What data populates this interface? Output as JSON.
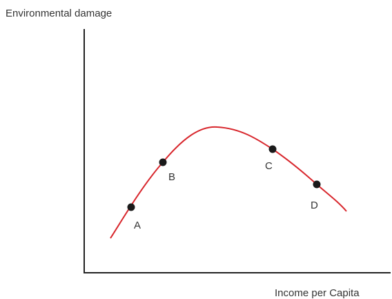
{
  "axes": {
    "y_label": "Environmental damage",
    "x_label": "Income per Capita"
  },
  "points": [
    {
      "label": "A"
    },
    {
      "label": "B"
    },
    {
      "label": "C"
    },
    {
      "label": "D"
    }
  ]
}
